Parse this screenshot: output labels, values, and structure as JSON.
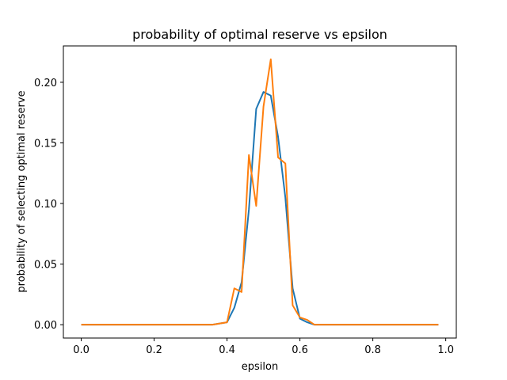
{
  "chart_data": {
    "type": "line",
    "title": "probability of optimal reserve vs epsilon",
    "xlabel": "epsilon",
    "ylabel": "probability of selecting optimal reserve",
    "xlim": [
      -0.049,
      1.029
    ],
    "ylim": [
      -0.011,
      0.23
    ],
    "xticks": [
      0.0,
      0.2,
      0.4,
      0.6,
      0.8,
      1.0
    ],
    "xtick_labels": [
      "0.0",
      "0.2",
      "0.4",
      "0.6",
      "0.8",
      "1.0"
    ],
    "yticks": [
      0.0,
      0.05,
      0.1,
      0.15,
      0.2
    ],
    "ytick_labels": [
      "0.00",
      "0.05",
      "0.10",
      "0.15",
      "0.20"
    ],
    "grid": false,
    "legend": null,
    "x": [
      0.0,
      0.02,
      0.04,
      0.06,
      0.08,
      0.1,
      0.12,
      0.14,
      0.16,
      0.18,
      0.2,
      0.22,
      0.24,
      0.26,
      0.28,
      0.3,
      0.32,
      0.34,
      0.36,
      0.38,
      0.4,
      0.42,
      0.44,
      0.46,
      0.48,
      0.5,
      0.52,
      0.54,
      0.56,
      0.58,
      0.6,
      0.62,
      0.64,
      0.66,
      0.68,
      0.7,
      0.72,
      0.74,
      0.76,
      0.78,
      0.8,
      0.82,
      0.84,
      0.86,
      0.88,
      0.9,
      0.92,
      0.94,
      0.96,
      0.98
    ],
    "series": [
      {
        "color": "#1f77b4",
        "values": [
          0,
          0,
          0,
          0,
          0,
          0,
          0,
          0,
          0,
          0,
          0,
          0,
          0,
          0,
          0,
          0,
          0,
          0,
          0,
          0.001,
          0.002,
          0.014,
          0.035,
          0.095,
          0.178,
          0.192,
          0.189,
          0.155,
          0.105,
          0.03,
          0.005,
          0.002,
          0,
          0,
          0,
          0,
          0,
          0,
          0,
          0,
          0,
          0,
          0,
          0,
          0,
          0,
          0,
          0,
          0,
          0
        ]
      },
      {
        "color": "#ff7f0e",
        "values": [
          0,
          0,
          0,
          0,
          0,
          0,
          0,
          0,
          0,
          0,
          0,
          0,
          0,
          0,
          0,
          0,
          0,
          0,
          0,
          0.001,
          0.002,
          0.03,
          0.027,
          0.14,
          0.098,
          0.18,
          0.219,
          0.138,
          0.133,
          0.016,
          0.006,
          0.004,
          0,
          0,
          0,
          0,
          0,
          0,
          0,
          0,
          0,
          0,
          0,
          0,
          0,
          0,
          0,
          0,
          0,
          0
        ]
      }
    ]
  }
}
